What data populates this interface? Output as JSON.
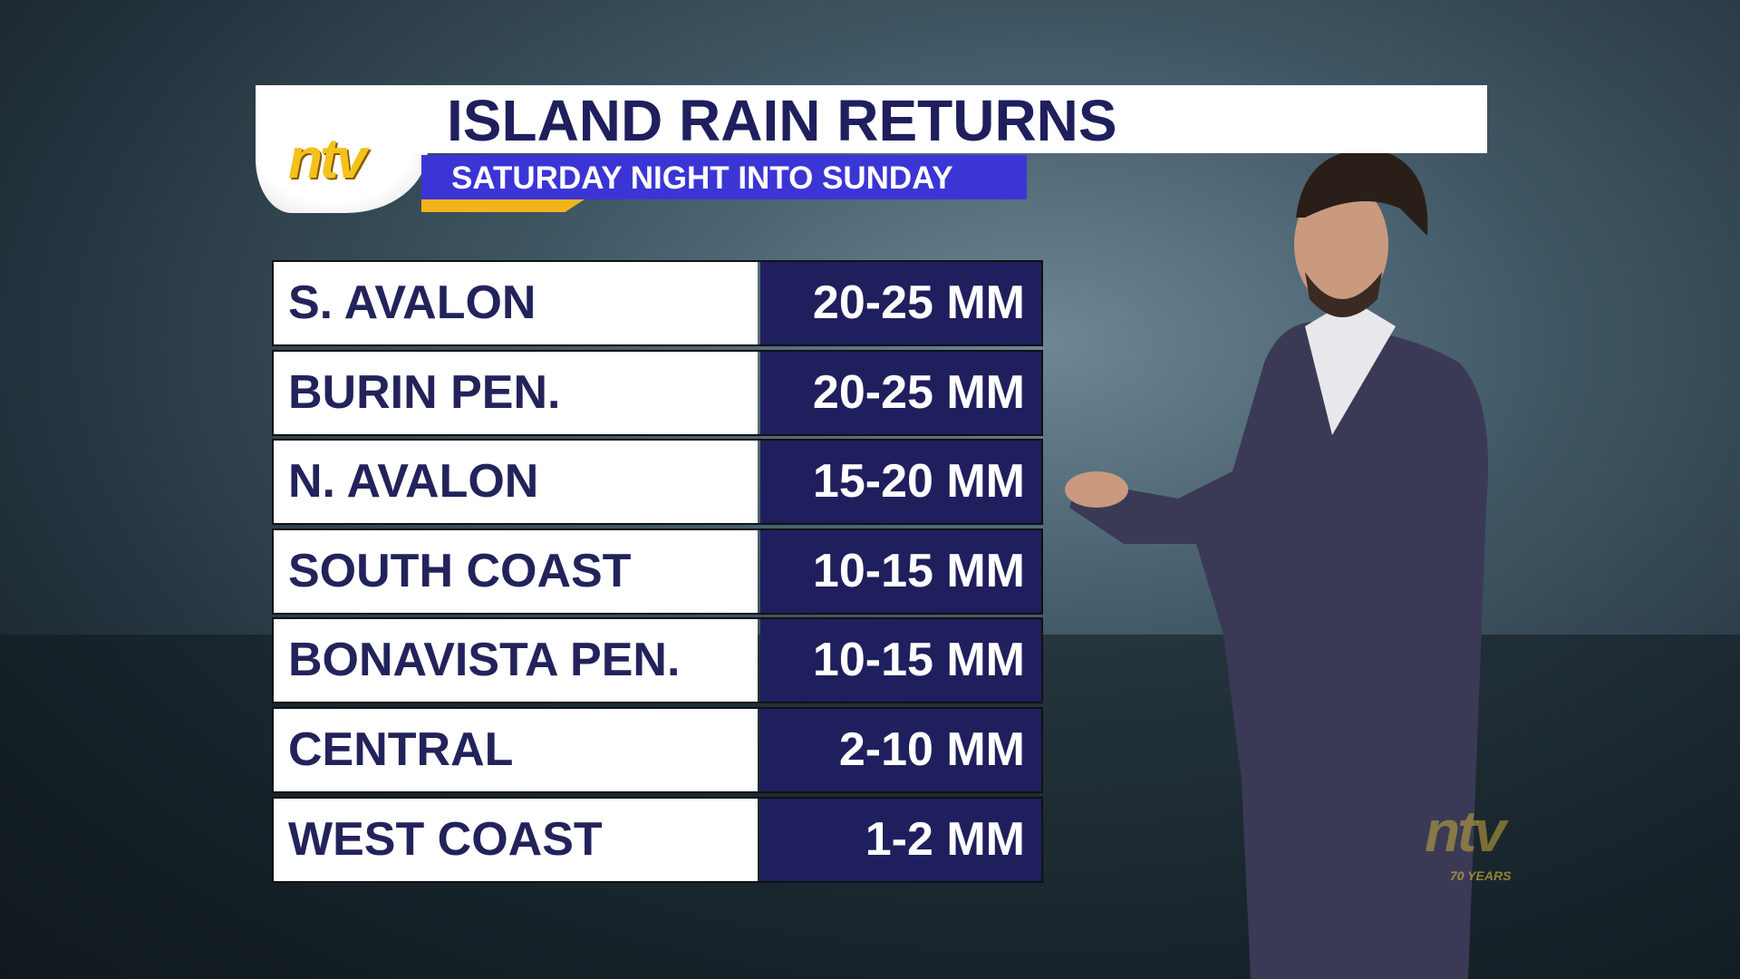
{
  "header": {
    "logo": "ntv",
    "title": "ISLAND RAIN RETURNS",
    "subtitle": "SATURDAY NIGHT INTO SUNDAY"
  },
  "table": {
    "rows": [
      [
        "S. AVALON",
        "20-25 MM"
      ],
      [
        "BURIN PEN.",
        "20-25 MM"
      ],
      [
        "N. AVALON",
        "15-20 MM"
      ],
      [
        "SOUTH COAST",
        "10-15 MM"
      ],
      [
        "BONAVISTA PEN.",
        "10-15 MM"
      ],
      [
        "CENTRAL",
        "2-10 MM"
      ],
      [
        "WEST COAST",
        "1-2 MM"
      ]
    ]
  },
  "watermark": {
    "logo": "ntv",
    "caption": "70 YEARS"
  }
}
